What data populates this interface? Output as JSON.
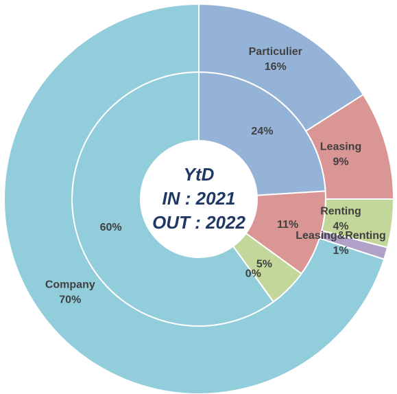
{
  "chart_data": {
    "type": "pie",
    "center_text": [
      "YtD",
      "IN : 2021",
      "OUT : 2022"
    ],
    "categories": [
      "Particulier",
      "Leasing",
      "Renting",
      "Leasing&Renting",
      "Company"
    ],
    "colors": [
      "#95b3d7",
      "#da9694",
      "#c4d79b",
      "#b1a0c7",
      "#92cddc"
    ],
    "series": [
      {
        "values": [
          24,
          11,
          5,
          0,
          60
        ],
        "value_labels": [
          "24%",
          "11%",
          "5%",
          "0%",
          "60%"
        ]
      },
      {
        "values": [
          16,
          9,
          4,
          1,
          70
        ],
        "value_labels": [
          "16%",
          "9%",
          "4%",
          "1%",
          "70%"
        ]
      }
    ]
  }
}
